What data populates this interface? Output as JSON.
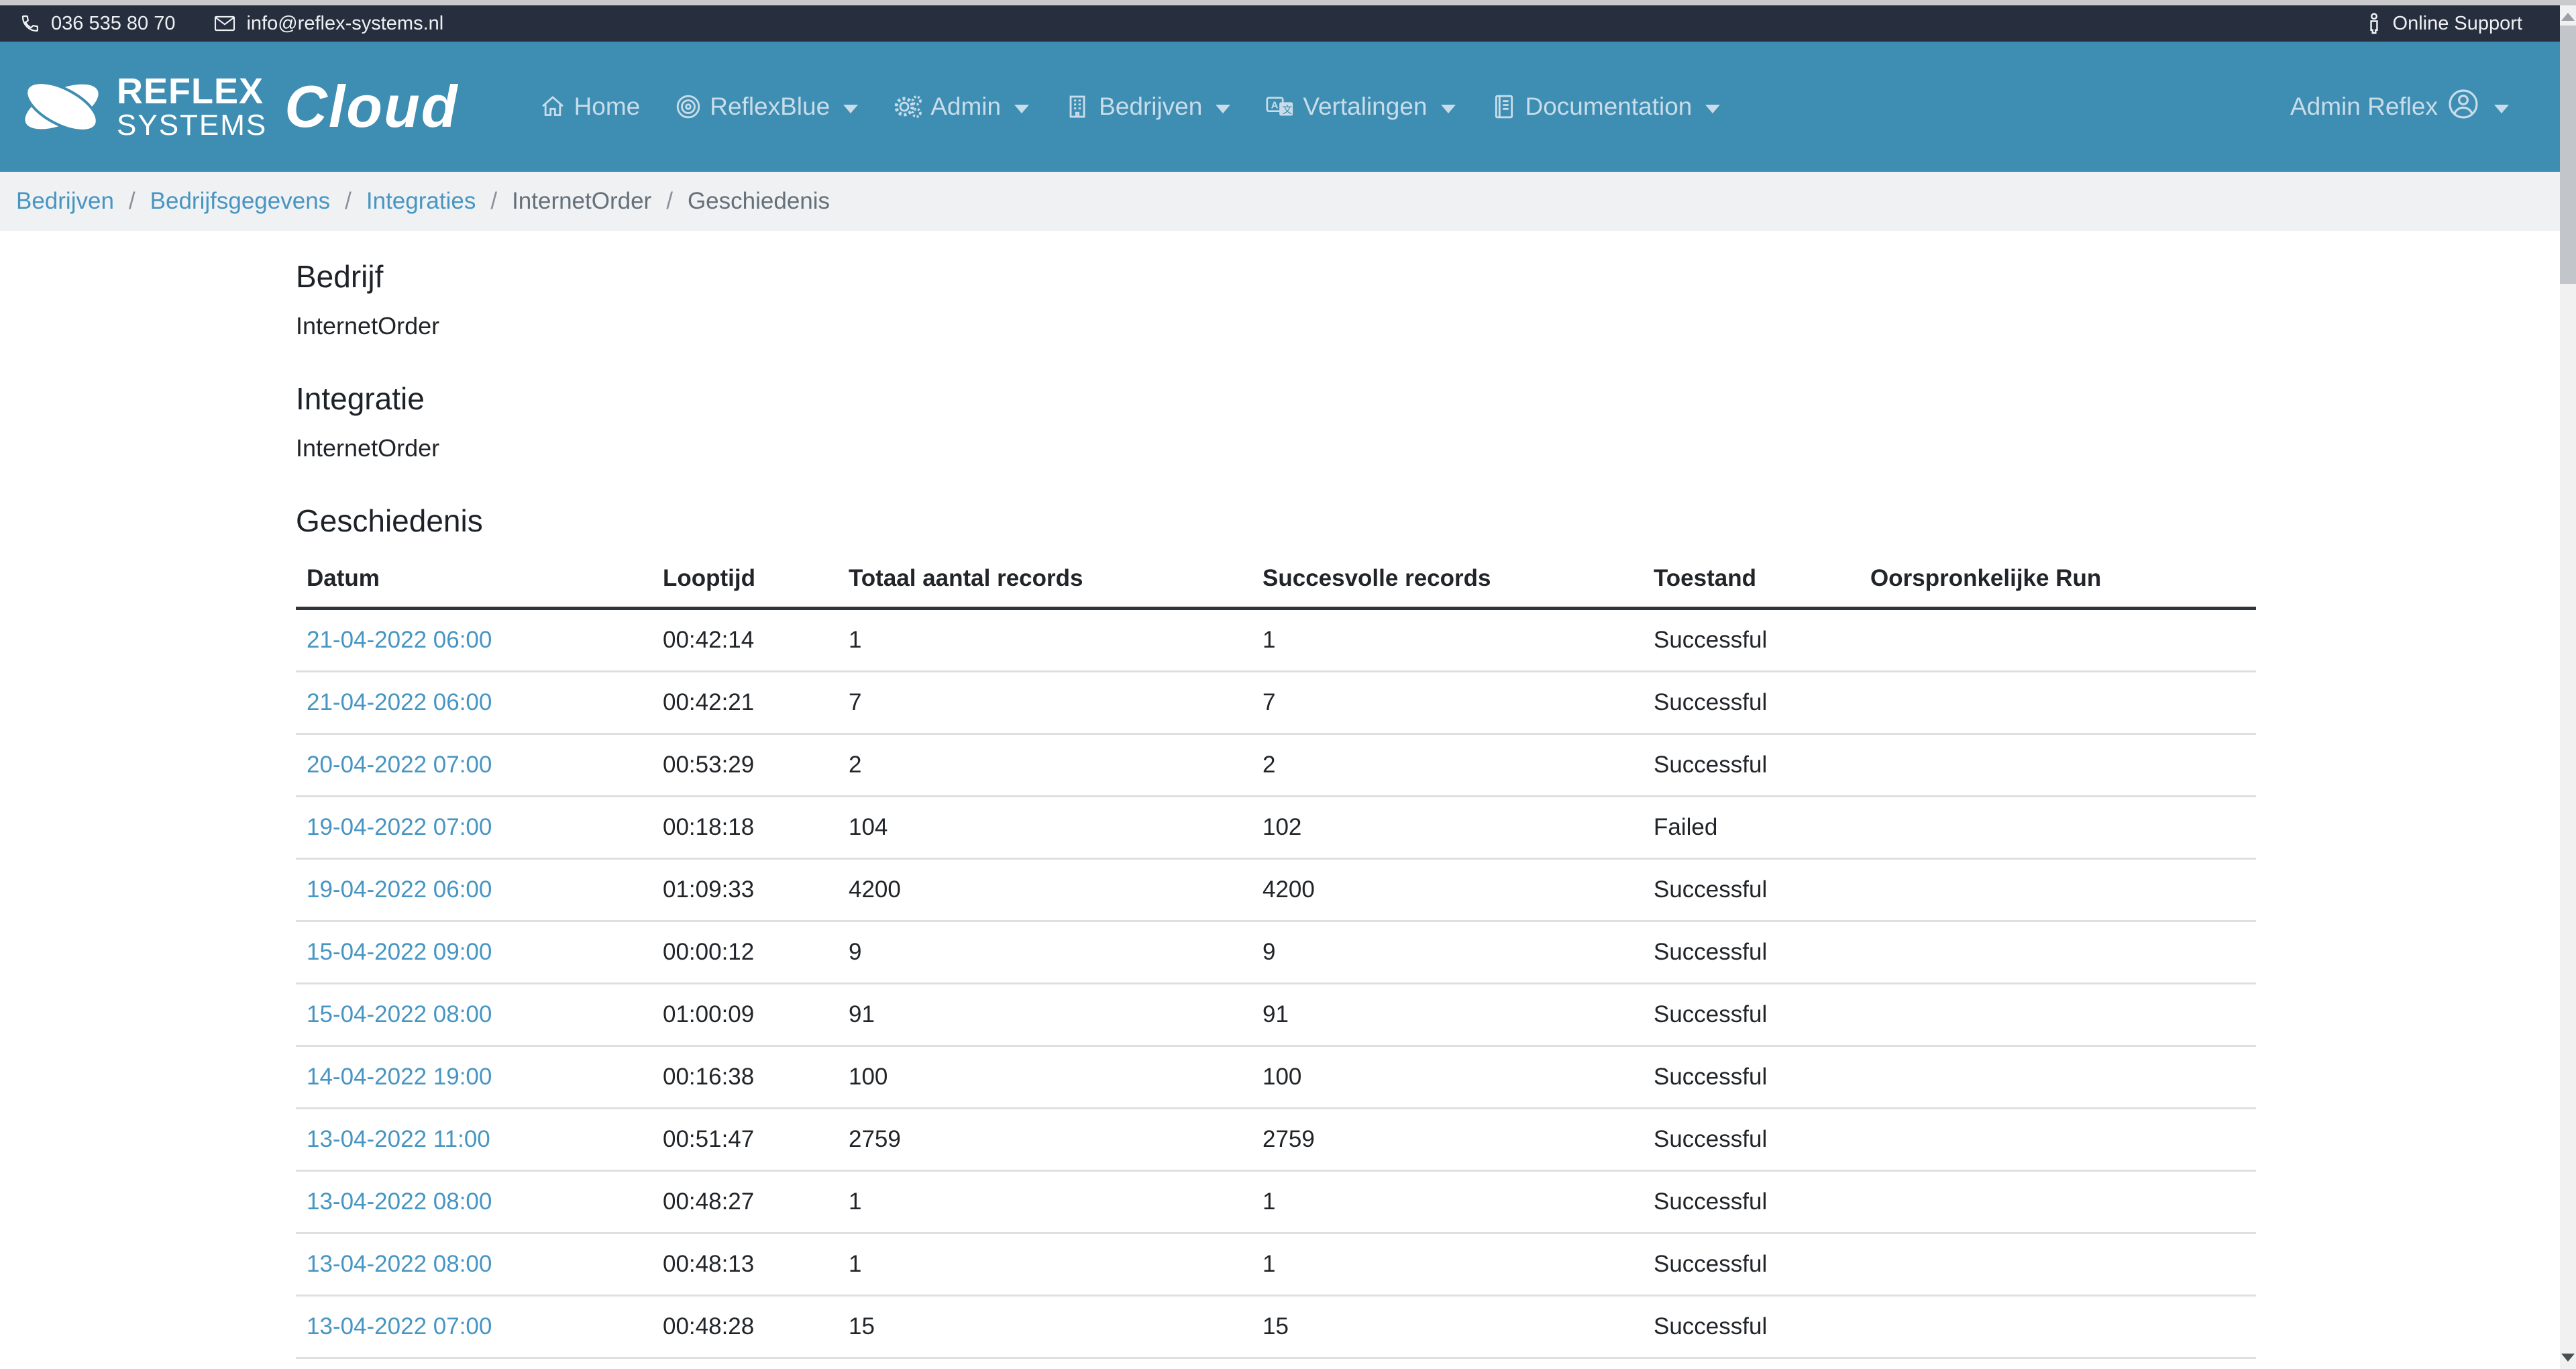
{
  "topbar": {
    "phone": "036 535 80 70",
    "email": "info@reflex-systems.nl",
    "support": "Online Support"
  },
  "navbar": {
    "brand": {
      "line1": "REFLEX",
      "line2": "SYSTEMS",
      "suffix": "Cloud"
    },
    "items": [
      {
        "label": "Home",
        "icon": "home-icon",
        "dropdown": false
      },
      {
        "label": "ReflexBlue",
        "icon": "target-icon",
        "dropdown": true
      },
      {
        "label": "Admin",
        "icon": "gears-icon",
        "dropdown": true
      },
      {
        "label": "Bedrijven",
        "icon": "building-icon",
        "dropdown": true
      },
      {
        "label": "Vertalingen",
        "icon": "translate-icon",
        "dropdown": true
      },
      {
        "label": "Documentation",
        "icon": "book-icon",
        "dropdown": true
      }
    ],
    "user": {
      "label": "Admin Reflex",
      "icon": "person-circle-icon",
      "dropdown": true
    }
  },
  "breadcrumb": {
    "separator": "/",
    "items": [
      {
        "label": "Bedrijven",
        "link": true
      },
      {
        "label": "Bedrijfsgegevens",
        "link": true
      },
      {
        "label": "Integraties",
        "link": true
      },
      {
        "label": "InternetOrder",
        "link": false
      },
      {
        "label": "Geschiedenis",
        "link": false
      }
    ]
  },
  "content": {
    "sections": [
      {
        "heading": "Bedrijf",
        "value": "InternetOrder"
      },
      {
        "heading": "Integratie",
        "value": "InternetOrder"
      }
    ],
    "table_heading": "Geschiedenis",
    "table": {
      "columns": [
        "Datum",
        "Looptijd",
        "Totaal aantal records",
        "Succesvolle records",
        "Toestand",
        "Oorspronkelijke Run"
      ],
      "rows": [
        {
          "datum": "21-04-2022 06:00",
          "looptijd": "00:42:14",
          "totaal": "1",
          "succesvol": "1",
          "toestand": "Successful",
          "run": ""
        },
        {
          "datum": "21-04-2022 06:00",
          "looptijd": "00:42:21",
          "totaal": "7",
          "succesvol": "7",
          "toestand": "Successful",
          "run": ""
        },
        {
          "datum": "20-04-2022 07:00",
          "looptijd": "00:53:29",
          "totaal": "2",
          "succesvol": "2",
          "toestand": "Successful",
          "run": ""
        },
        {
          "datum": "19-04-2022 07:00",
          "looptijd": "00:18:18",
          "totaal": "104",
          "succesvol": "102",
          "toestand": "Failed",
          "run": ""
        },
        {
          "datum": "19-04-2022 06:00",
          "looptijd": "01:09:33",
          "totaal": "4200",
          "succesvol": "4200",
          "toestand": "Successful",
          "run": ""
        },
        {
          "datum": "15-04-2022 09:00",
          "looptijd": "00:00:12",
          "totaal": "9",
          "succesvol": "9",
          "toestand": "Successful",
          "run": ""
        },
        {
          "datum": "15-04-2022 08:00",
          "looptijd": "01:00:09",
          "totaal": "91",
          "succesvol": "91",
          "toestand": "Successful",
          "run": ""
        },
        {
          "datum": "14-04-2022 19:00",
          "looptijd": "00:16:38",
          "totaal": "100",
          "succesvol": "100",
          "toestand": "Successful",
          "run": ""
        },
        {
          "datum": "13-04-2022 11:00",
          "looptijd": "00:51:47",
          "totaal": "2759",
          "succesvol": "2759",
          "toestand": "Successful",
          "run": ""
        },
        {
          "datum": "13-04-2022 08:00",
          "looptijd": "00:48:27",
          "totaal": "1",
          "succesvol": "1",
          "toestand": "Successful",
          "run": ""
        },
        {
          "datum": "13-04-2022 08:00",
          "looptijd": "00:48:13",
          "totaal": "1",
          "succesvol": "1",
          "toestand": "Successful",
          "run": ""
        },
        {
          "datum": "13-04-2022 07:00",
          "looptijd": "00:48:28",
          "totaal": "15",
          "succesvol": "15",
          "toestand": "Successful",
          "run": ""
        }
      ]
    }
  },
  "colors": {
    "topbar_bg": "#272e3e",
    "navbar_bg": "#3e8db2",
    "link_blue": "#4795c2",
    "breadcrumb_bg": "#f0f1f3",
    "table_header_border": "#2f353b",
    "row_border": "#dde0e3"
  }
}
